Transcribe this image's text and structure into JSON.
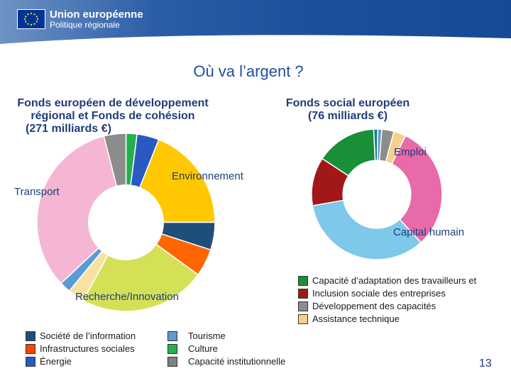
{
  "header": {
    "org": "Union européenne",
    "dept": "Politique régionale"
  },
  "title": "Où va l’argent ?",
  "fund_left": {
    "line1": "Fonds européen de développement",
    "line2": "régional et Fonds de cohésion",
    "line3": "(271 milliards €)"
  },
  "fund_right": {
    "line1": "Fonds social européen",
    "line2": "(76 milliards €)"
  },
  "labels": {
    "emploi": "Emploi",
    "environnement": "Environnement",
    "transport": "Transport",
    "capital_humain": "Capital humain",
    "recherche": "Recherche/Innovation"
  },
  "legend_left": [
    {
      "label": "Société de l’information",
      "color": "#1f4e79"
    },
    {
      "label": "Infrastructures sociales",
      "color": "#ff4500"
    },
    {
      "label": "Énergie",
      "color": "#2b59c3"
    }
  ],
  "legend_mid": [
    {
      "label": "Tourisme",
      "color": "#5b9bd5"
    },
    {
      "label": "Culture",
      "color": "#22b14c"
    },
    {
      "label": "Capacité institutionnelle",
      "color": "#7f7f7f"
    }
  ],
  "legend_right": [
    {
      "label": "Capacité d’adaptation des travailleurs et",
      "color": "#1a8f3a"
    },
    {
      "label": "Inclusion sociale des entreprises",
      "color": "#a01818"
    },
    {
      "label": "Développement des capacités",
      "color": "#8c8c8c"
    },
    {
      "label": "Assistance technique",
      "color": "#f6d08a"
    }
  ],
  "page_number": "13",
  "chart_data": [
    {
      "type": "pie",
      "title": "Fonds européen de développement régional et Fonds de cohésion (271 milliards €)",
      "categories": [
        "Culture",
        "Énergie",
        "Environnement",
        "Société de l’information",
        "Infrastructures sociales",
        "Recherche/Innovation",
        "Assistance technique",
        "Tourisme",
        "Transport",
        "Capacité institutionnelle"
      ],
      "values": [
        2,
        4,
        19,
        5,
        5,
        23,
        3,
        2,
        33,
        4
      ],
      "colors": [
        "#22b14c",
        "#2b59c3",
        "#ffc800",
        "#1f4e79",
        "#ff6600",
        "#d4e157",
        "#f6e3a1",
        "#5b9bd5",
        "#f4b6d2",
        "#8c8c8c"
      ]
    },
    {
      "type": "pie",
      "title": "Fonds social européen (76 milliards €)",
      "categories": [
        "Emploi",
        "Capital humain",
        "Inclusion sociale",
        "Capacité d’adaptation des travailleurs et des entreprises",
        "Culture",
        "Tourisme",
        "Capacité institutionnelle",
        "Assistance technique"
      ],
      "values": [
        31,
        34,
        12,
        15,
        1,
        1,
        3,
        3
      ],
      "colors": [
        "#e86aa8",
        "#7ec8ea",
        "#a01818",
        "#1a8f3a",
        "#1f7a8c",
        "#5b9bd5",
        "#8c8c8c",
        "#f6d08a"
      ]
    }
  ]
}
